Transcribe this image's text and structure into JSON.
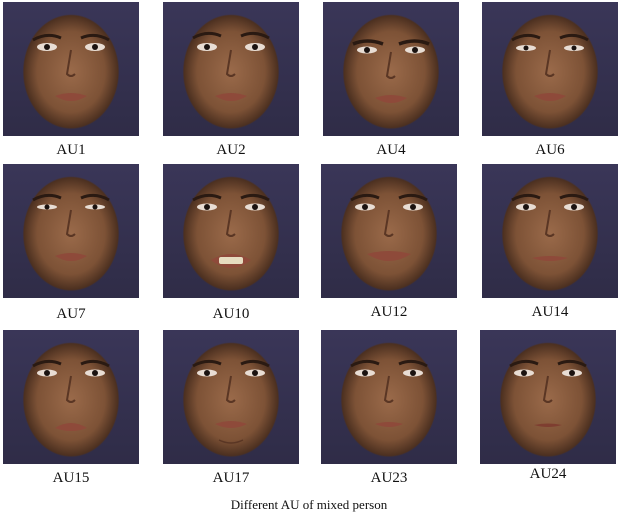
{
  "caption": "Different AU of mixed person",
  "tiles": [
    {
      "label": "AU1"
    },
    {
      "label": "AU2"
    },
    {
      "label": "AU4"
    },
    {
      "label": "AU6"
    },
    {
      "label": "AU7"
    },
    {
      "label": "AU10"
    },
    {
      "label": "AU12"
    },
    {
      "label": "AU14"
    },
    {
      "label": "AU15"
    },
    {
      "label": "AU17"
    },
    {
      "label": "AU23"
    },
    {
      "label": "AU24"
    }
  ],
  "colors": {
    "background": "#2f2c47",
    "skin": "#8a5c3e",
    "text": "#111111"
  }
}
